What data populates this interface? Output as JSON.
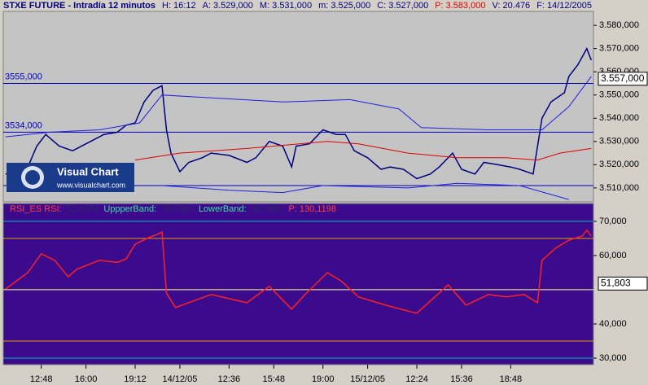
{
  "header": {
    "title": "STXE FUTURE - Intradía 12 minutos",
    "stats": [
      {
        "label": "H:",
        "value": "16:12"
      },
      {
        "label": "A:",
        "value": "3.529,000"
      },
      {
        "label": "M:",
        "value": "3.531,000"
      },
      {
        "label": "m:",
        "value": "3.525,000"
      },
      {
        "label": "C:",
        "value": "3.527,000"
      },
      {
        "label": "P:",
        "value": "3.583,000",
        "color": "#e00000"
      },
      {
        "label": "V:",
        "value": "20.476"
      },
      {
        "label": "F:",
        "value": "14/12/2005"
      }
    ]
  },
  "logo": {
    "name": "Visual Chart",
    "url": "www.visualchart.com"
  },
  "chart_data": [
    {
      "type": "line",
      "background": "#c4c4c4",
      "ylim": [
        3504,
        3586
      ],
      "yticks": [
        {
          "value": 3510,
          "label": "3.510,000"
        },
        {
          "value": 3520,
          "label": "3.520,000"
        },
        {
          "value": 3530,
          "label": "3.530,000"
        },
        {
          "value": 3540,
          "label": "3.540,000"
        },
        {
          "value": 3550,
          "label": "3.550,000"
        },
        {
          "value": 3560,
          "label": "3.560,000"
        },
        {
          "value": 3570,
          "label": "3.570,000"
        },
        {
          "value": 3580,
          "label": "3.580,000"
        }
      ],
      "xlim": [
        -0.5,
        131.5
      ],
      "levels": [
        {
          "value": 3555,
          "label": "3555,000",
          "color": "#0000c0"
        },
        {
          "value": 3534,
          "label": "3534,000",
          "color": "#0000c0"
        },
        {
          "value": 3511,
          "color": "#0000c0"
        }
      ],
      "current": {
        "value": 3557,
        "label": "3.557,000"
      },
      "series": [
        {
          "name": "STXE FUTURE",
          "color": "#000080",
          "x": [
            0,
            5,
            7,
            9,
            12,
            15,
            16,
            19,
            22,
            25,
            27,
            29,
            31,
            33,
            35,
            36,
            37,
            39,
            41,
            44,
            46,
            50,
            54,
            56,
            59,
            62,
            64,
            65,
            68,
            71,
            74,
            76,
            78,
            81,
            84,
            86,
            89,
            92,
            95,
            97,
            100,
            102,
            105,
            107,
            110,
            113,
            115,
            118,
            120,
            122,
            125,
            126,
            128,
            130,
            131
          ],
          "values": [
            3516,
            3519,
            3528,
            3533,
            3528,
            3526,
            3527,
            3530,
            3533,
            3534,
            3537,
            3538,
            3547,
            3552,
            3554,
            3535,
            3525,
            3517,
            3521,
            3523,
            3525,
            3524,
            3521,
            3523,
            3530,
            3528,
            3519,
            3528,
            3529,
            3535,
            3533,
            3533,
            3526,
            3523,
            3518,
            3519,
            3518,
            3514,
            3516,
            3519,
            3525,
            3518,
            3516,
            3521,
            3520,
            3519,
            3518,
            3516,
            3540,
            3547,
            3551,
            3558,
            3563,
            3570,
            3565
          ]
        },
        {
          "color": "#2020e0",
          "x": [
            0,
            10,
            21,
            30,
            35,
            44,
            62,
            77,
            88,
            93,
            108,
            120,
            126,
            131
          ],
          "values": [
            3532,
            3534,
            3535,
            3538,
            3550,
            3549,
            3547,
            3548,
            3544,
            3536,
            3535,
            3535,
            3545,
            3558
          ]
        },
        {
          "color": "#2020e0",
          "x": [
            35,
            50,
            62,
            71,
            90,
            101,
            115,
            126
          ],
          "values": [
            3511,
            3509,
            3508,
            3511,
            3510,
            3512,
            3511,
            3505
          ]
        },
        {
          "color": "#e00000",
          "x": [
            29,
            39,
            54,
            72,
            79,
            90,
            101,
            112,
            119,
            124,
            131
          ],
          "values": [
            3522,
            3525,
            3527,
            3530,
            3529,
            3525,
            3523,
            3523,
            3522,
            3525,
            3527
          ]
        }
      ]
    },
    {
      "type": "line",
      "background": "#3c0a8c",
      "legend": [
        {
          "text": "RSI_ES  RSI:",
          "color": "#ff4040"
        },
        {
          "text": "51,8074",
          "color": "#2a2a6a"
        },
        {
          "text": "UppperBand:",
          "color": "#40e0a0"
        },
        {
          "text": "70,0000",
          "color": "#2a2a6a"
        },
        {
          "text": "LowerBand:",
          "color": "#40e0a0"
        },
        {
          "text": "30,0000",
          "color": "#2a2a6a"
        },
        {
          "text": "P: 130,1198",
          "color": "#ff4040"
        }
      ],
      "ylim": [
        28.1,
        75.2
      ],
      "yticks": [
        {
          "value": 30,
          "label": "30,000"
        },
        {
          "value": 40,
          "label": "40,000"
        },
        {
          "value": 60,
          "label": "60,000"
        },
        {
          "value": 70,
          "label": "70,000"
        }
      ],
      "xlim": [
        -0.5,
        131.5
      ],
      "xticks": [
        {
          "value": 8,
          "label": "12:48"
        },
        {
          "value": 18,
          "label": "16:00"
        },
        {
          "value": 29,
          "label": "19:12"
        },
        {
          "value": 39,
          "label": "14/12/05"
        },
        {
          "value": 50,
          "label": "12:36"
        },
        {
          "value": 60,
          "label": "15:48"
        },
        {
          "value": 71,
          "label": "19:00"
        },
        {
          "value": 81,
          "label": "15/12/05"
        },
        {
          "value": 92,
          "label": "12:24"
        },
        {
          "value": 102,
          "label": "15:36"
        },
        {
          "value": 113,
          "label": "18:48"
        }
      ],
      "levels": [
        {
          "value": 70,
          "color": "#00c0c0"
        },
        {
          "value": 65,
          "color": "#e0a000"
        },
        {
          "value": 50,
          "color": "#ffff90"
        },
        {
          "value": 35,
          "color": "#e0a000"
        },
        {
          "value": 30,
          "color": "#00c0c0"
        }
      ],
      "current": {
        "value": 51.803,
        "label": "51,803"
      },
      "series": [
        {
          "name": "RSI",
          "color": "#ff2020",
          "x": [
            0,
            5,
            8,
            11,
            14,
            16,
            21,
            25,
            27,
            29,
            32,
            34,
            35,
            36,
            38,
            42,
            46,
            54,
            59,
            64,
            67,
            72,
            75,
            79,
            85,
            92,
            95,
            99,
            103,
            108,
            112,
            116,
            119,
            120,
            123,
            126,
            129,
            130,
            131
          ],
          "values": [
            50.2,
            55,
            60.5,
            58.6,
            53.8,
            56,
            58.6,
            58,
            59,
            63.3,
            65.2,
            66.2,
            66.9,
            49,
            44.8,
            46.7,
            48.6,
            46.2,
            51,
            44.3,
            48.6,
            55,
            52.6,
            47.9,
            45.5,
            43.1,
            46.7,
            51.4,
            45.5,
            48.6,
            47.9,
            48.6,
            46.2,
            58.6,
            62.1,
            64.5,
            65.7,
            67.4,
            65.7
          ]
        }
      ]
    }
  ]
}
